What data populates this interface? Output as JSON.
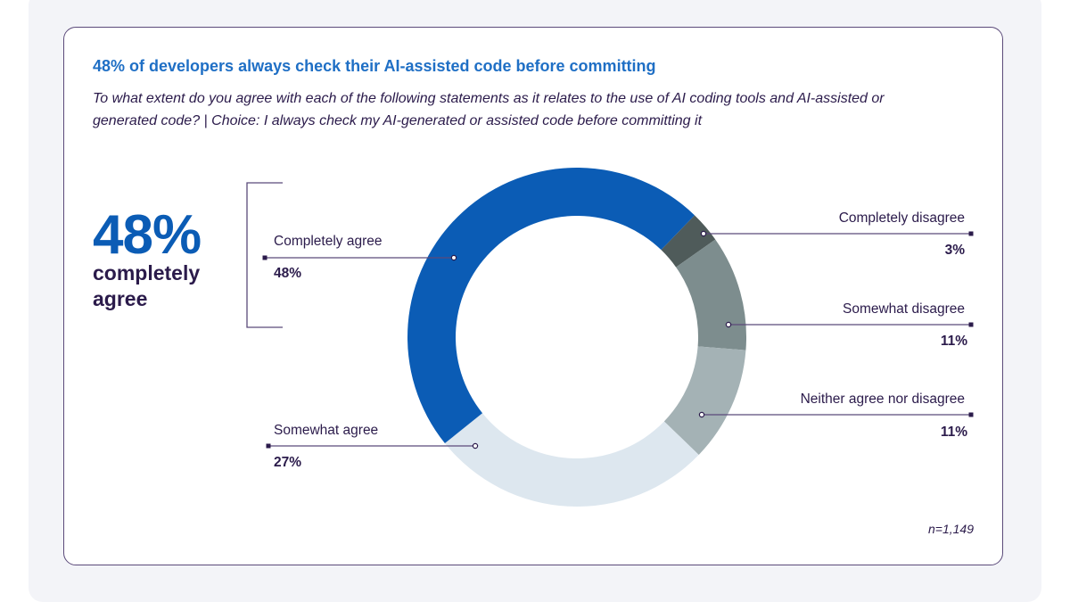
{
  "title": "48% of developers always check their AI-assisted code before committing",
  "subtitle": "To what extent do you agree with each of the following statements as it relates to the use of AI coding tools and AI-assisted or generated code? | Choice: I always check my AI-generated or assisted code before committing it",
  "callout": {
    "value": "48%",
    "text": "completely agree"
  },
  "note": "n=1,149",
  "chart_data": {
    "type": "pie",
    "donut": true,
    "slices": [
      {
        "label": "Completely agree",
        "value": 48,
        "display": "48%",
        "color": "#0b5cb5"
      },
      {
        "label": "Completely disagree",
        "value": 3,
        "display": "3%",
        "color": "#4f5b5a"
      },
      {
        "label": "Somewhat disagree",
        "value": 11,
        "display": "11%",
        "color": "#7d8d8e"
      },
      {
        "label": "Neither agree nor disagree",
        "value": 11,
        "display": "11%",
        "color": "#a4b2b5"
      },
      {
        "label": "Somewhat agree",
        "value": 27,
        "display": "27%",
        "color": "#dde7ef"
      }
    ]
  }
}
